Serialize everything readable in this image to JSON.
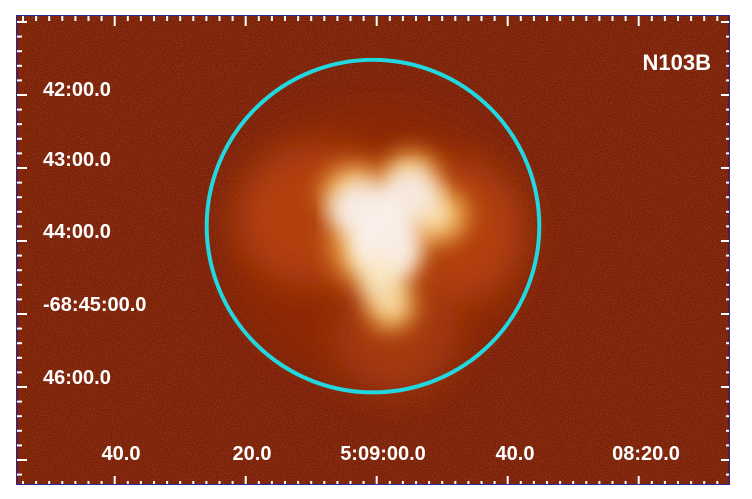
{
  "image": {
    "title": "N103B",
    "y_axis_labels": [
      "42:00.0",
      "43:00.0",
      "44:00.0",
      "-68:45:00.0",
      "46:00.0"
    ],
    "x_axis_labels": [
      "40.0",
      "20.0",
      "5:09:00.0",
      "40.0",
      "08:20.0"
    ],
    "colors": {
      "background": "#5e0900",
      "region_circle": "#22d8e0",
      "frame": "#2a2aa0"
    }
  }
}
